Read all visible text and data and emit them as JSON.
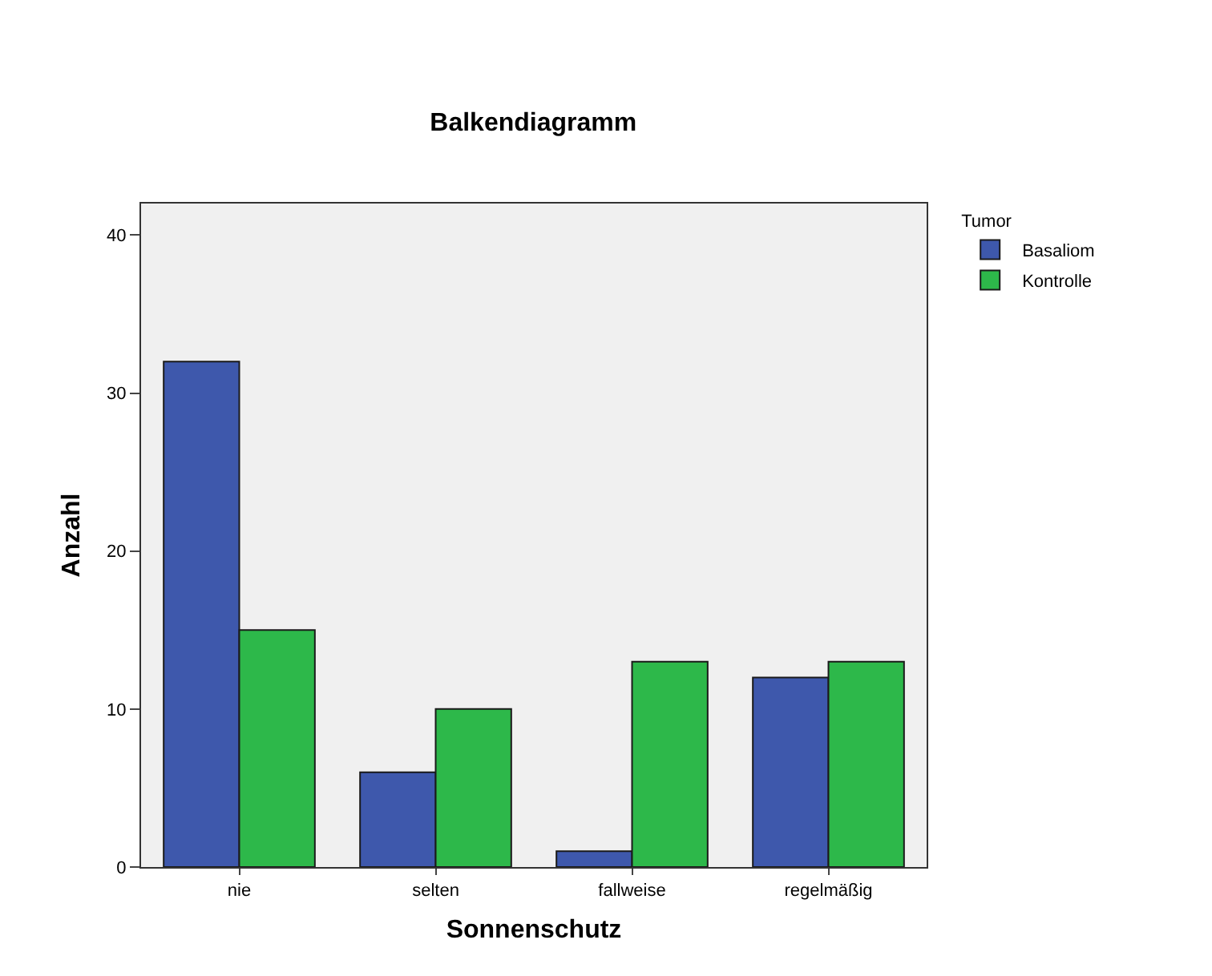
{
  "chart_data": {
    "type": "bar",
    "title": "Balkendiagramm",
    "xlabel": "Sonnenschutz",
    "ylabel": "Anzahl",
    "legend_title": "Tumor",
    "categories": [
      "nie",
      "selten",
      "fallweise",
      "regelmäßig"
    ],
    "series": [
      {
        "name": "Basaliom",
        "color": "#3e58ac",
        "values": [
          32,
          6,
          1,
          12
        ]
      },
      {
        "name": "Kontrolle",
        "color": "#2db84a",
        "values": [
          15,
          10,
          13,
          13
        ]
      }
    ],
    "ylim": [
      0,
      42
    ],
    "yticks": [
      0,
      10,
      20,
      30,
      40
    ],
    "grid": false,
    "legend": "top right"
  }
}
